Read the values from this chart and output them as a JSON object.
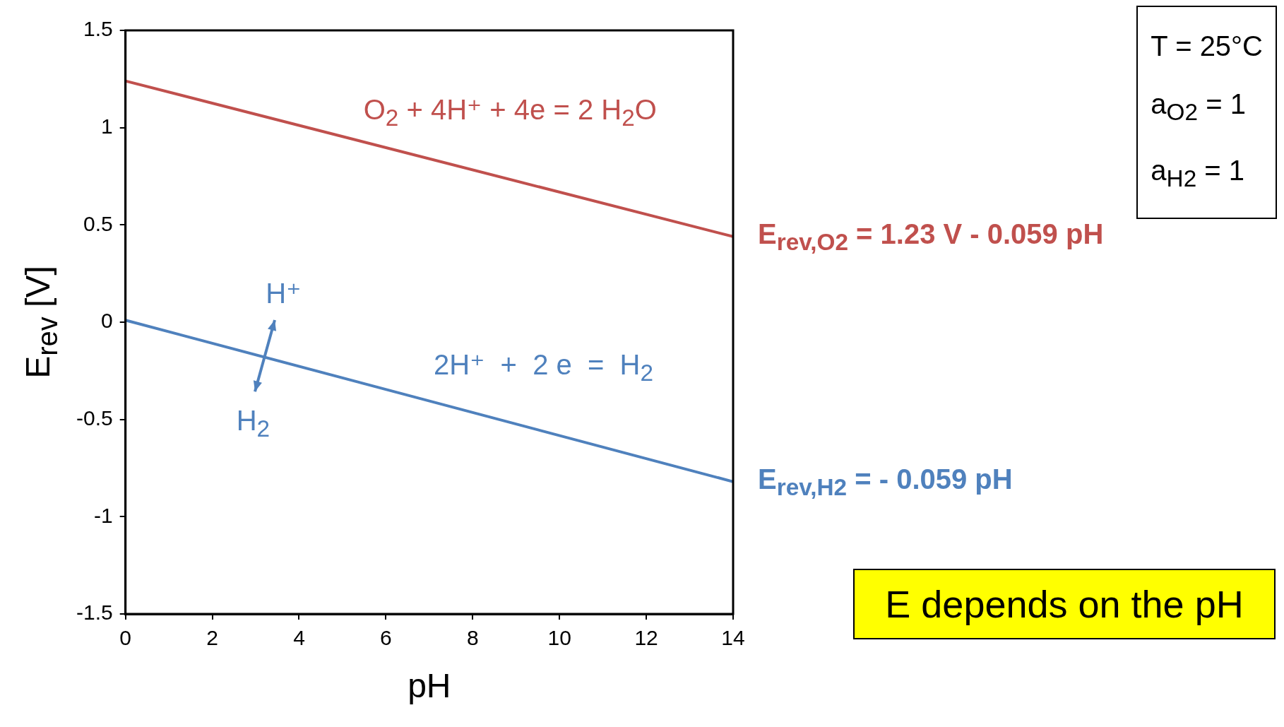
{
  "chart_data": {
    "type": "line",
    "xlabel": "pH",
    "ylabel": "E$_{rev}$ [V]",
    "x": [
      0,
      14
    ],
    "series": [
      {
        "color": "#c0504d",
        "values": [
          1.24,
          0.44
        ]
      },
      {
        "color": "#4f81bd",
        "values": [
          0.01,
          -0.82
        ]
      }
    ],
    "xlim": [
      0,
      14
    ],
    "xticks": [
      0,
      2,
      4,
      6,
      8,
      10,
      12,
      14
    ],
    "ylim": [
      -1.5,
      1.5
    ],
    "yticks": [
      -1.5,
      -1,
      -0.5,
      0,
      0.5,
      1,
      1.5
    ],
    "grid": false,
    "legend": false,
    "marker": "none",
    "line_style": "solid",
    "annotations": [
      {
        "text": "E$_{rev,O2}$ = 1.23 V - 0.059 pH",
        "x": 14,
        "y": 0.44
      },
      {
        "text": "E$_{rev,H2}$ = - 0.059 pH",
        "x": 14,
        "y": -0.82
      },
      "O$_{2}$ + 4H⁺ + 4e = 2 H$_{2}$O",
      "2H⁺  +  2 e  =  H$_{2}$",
      "H⁺",
      "H$_{2}$",
      "T = 25°C",
      "a$_{O2}$ = 1",
      "a$_{H2}$ = 1",
      "E depends on the pH"
    ]
  }
}
